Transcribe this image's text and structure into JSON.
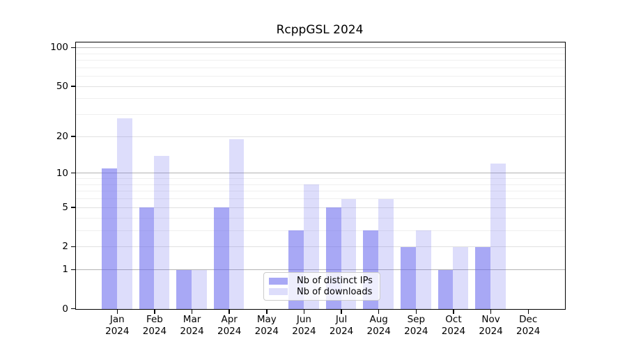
{
  "chart_data": {
    "type": "bar",
    "title": "RcppGSL 2024",
    "year_label": "2024",
    "categories": [
      "Jan",
      "Feb",
      "Mar",
      "Apr",
      "May",
      "Jun",
      "Jul",
      "Aug",
      "Sep",
      "Oct",
      "Nov",
      "Dec"
    ],
    "series": [
      {
        "name": "Nb of distinct IPs",
        "color": "rgba(102,102,238,0.57)",
        "values": [
          11,
          5,
          1,
          5,
          0,
          3,
          5,
          3,
          2,
          1,
          2,
          0
        ]
      },
      {
        "name": "Nb of downloads",
        "color": "rgba(102,102,238,0.22)",
        "values": [
          28,
          14,
          1,
          19,
          0,
          8,
          6,
          6,
          3,
          2,
          12,
          0
        ]
      }
    ],
    "xlabel": "",
    "ylabel": "",
    "yscale": "log1p",
    "ylim": [
      0,
      110
    ],
    "yticks": [
      0,
      1,
      2,
      5,
      10,
      20,
      50,
      100
    ],
    "minor_gridlines": [
      3,
      4,
      6,
      7,
      8,
      9,
      30,
      40,
      60,
      70,
      80,
      90
    ],
    "grid": "horizontal",
    "legend_position": "lower-center",
    "colors": {
      "power10_grid": "#b3b3b3",
      "labeled_grid": "#e0e0e0",
      "minor_grid": "#efefef",
      "spine": "#000000",
      "legend_border": "#cccccc"
    }
  }
}
